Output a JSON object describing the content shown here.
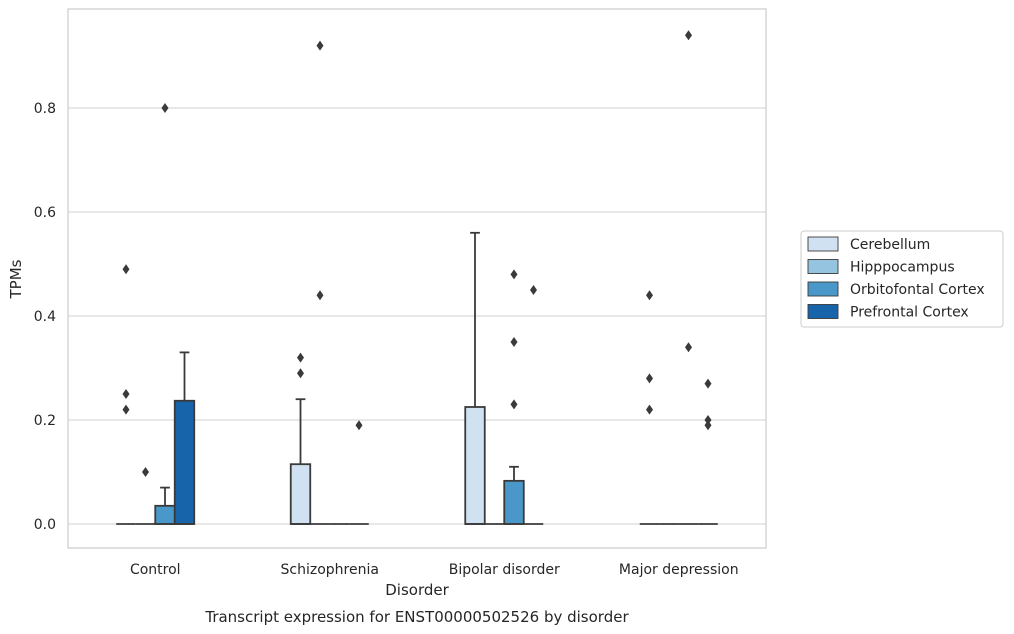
{
  "chart_data": {
    "type": "box",
    "caption": "Transcript expression for ENST00000502526 by disorder",
    "xlabel": "Disorder",
    "ylabel": "TPMs",
    "ylim": [
      -0.045,
      0.99
    ],
    "yticks": [
      "0.0",
      "0.2",
      "0.4",
      "0.6",
      "0.8"
    ],
    "grid": true,
    "legend_position": "right",
    "categories": [
      "Control",
      "Schizophrenia",
      "Bipolar disorder",
      "Major depression"
    ],
    "series": [
      {
        "name": "Cerebellum",
        "color": "#d0e1f2",
        "boxes": [
          {
            "q1": 0,
            "median": 0,
            "q3": 0,
            "whisker_low": 0,
            "whisker_high": 0,
            "outliers": [
              0.49,
              0.25,
              0.22
            ]
          },
          {
            "q1": 0,
            "median": 0,
            "q3": 0.115,
            "whisker_low": 0,
            "whisker_high": 0.24,
            "outliers": [
              0.32,
              0.29
            ]
          },
          {
            "q1": 0,
            "median": 0,
            "q3": 0.225,
            "whisker_low": 0,
            "whisker_high": 0.56,
            "outliers": []
          },
          {
            "q1": 0,
            "median": 0,
            "q3": 0,
            "whisker_low": 0,
            "whisker_high": 0,
            "outliers": [
              0.44,
              0.28,
              0.22
            ]
          }
        ]
      },
      {
        "name": "Hipppocampus",
        "color": "#94c4df",
        "boxes": [
          {
            "q1": 0,
            "median": 0,
            "q3": 0,
            "whisker_low": 0,
            "whisker_high": 0,
            "outliers": [
              0.1
            ]
          },
          {
            "q1": 0,
            "median": 0,
            "q3": 0,
            "whisker_low": 0,
            "whisker_high": 0,
            "outliers": [
              0.92,
              0.44
            ]
          },
          {
            "q1": 0,
            "median": 0,
            "q3": 0,
            "whisker_low": 0,
            "whisker_high": 0,
            "outliers": []
          },
          {
            "q1": 0,
            "median": 0,
            "q3": 0,
            "whisker_low": 0,
            "whisker_high": 0,
            "outliers": []
          }
        ]
      },
      {
        "name": "Orbitofontal Cortex",
        "color": "#4a98c9",
        "boxes": [
          {
            "q1": 0,
            "median": 0,
            "q3": 0.035,
            "whisker_low": 0,
            "whisker_high": 0.07,
            "outliers": [
              0.8
            ]
          },
          {
            "q1": 0,
            "median": 0,
            "q3": 0,
            "whisker_low": 0,
            "whisker_high": 0,
            "outliers": []
          },
          {
            "q1": 0,
            "median": 0,
            "q3": 0.083,
            "whisker_low": 0,
            "whisker_high": 0.11,
            "outliers": [
              0.48,
              0.35,
              0.23
            ]
          },
          {
            "q1": 0,
            "median": 0,
            "q3": 0,
            "whisker_low": 0,
            "whisker_high": 0,
            "outliers": [
              0.94,
              0.34
            ]
          }
        ]
      },
      {
        "name": "Prefrontal Cortex",
        "color": "#1764ab",
        "boxes": [
          {
            "q1": 0,
            "median": 0,
            "q3": 0.237,
            "whisker_low": 0,
            "whisker_high": 0.33,
            "outliers": []
          },
          {
            "q1": 0,
            "median": 0,
            "q3": 0,
            "whisker_low": 0,
            "whisker_high": 0,
            "outliers": [
              0.19
            ]
          },
          {
            "q1": 0,
            "median": 0,
            "q3": 0,
            "whisker_low": 0,
            "whisker_high": 0,
            "outliers": [
              0.45
            ]
          },
          {
            "q1": 0,
            "median": 0,
            "q3": 0,
            "whisker_low": 0,
            "whisker_high": 0,
            "outliers": [
              0.27,
              0.2,
              0.19
            ]
          }
        ]
      }
    ]
  }
}
